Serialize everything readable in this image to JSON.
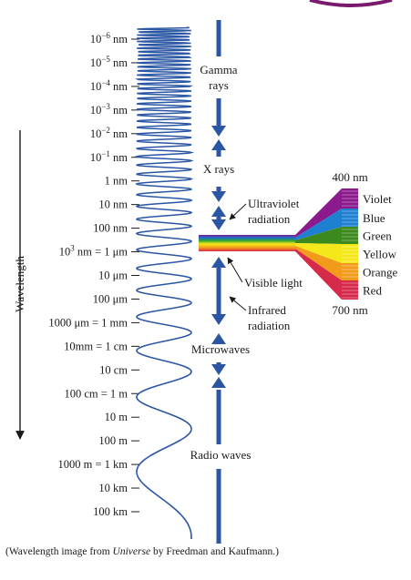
{
  "wavelength_ticks": [
    {
      "base": "10",
      "sup": "−6",
      "unit": " nm"
    },
    {
      "base": "10",
      "sup": "−5",
      "unit": " nm"
    },
    {
      "base": "10",
      "sup": "−4",
      "unit": " nm"
    },
    {
      "base": "10",
      "sup": "−3",
      "unit": " nm"
    },
    {
      "base": "10",
      "sup": "−2",
      "unit": " nm"
    },
    {
      "base": "10",
      "sup": "−1",
      "unit": " nm"
    },
    {
      "base": "1 nm",
      "sup": "",
      "unit": ""
    },
    {
      "base": "10 nm",
      "sup": "",
      "unit": ""
    },
    {
      "base": "100 nm",
      "sup": "",
      "unit": ""
    },
    {
      "base": "10",
      "sup": "3",
      "unit": " nm = 1 μm"
    },
    {
      "base": "10 μm",
      "sup": "",
      "unit": ""
    },
    {
      "base": "100 μm",
      "sup": "",
      "unit": ""
    },
    {
      "base": "1000 μm = 1 mm",
      "sup": "",
      "unit": ""
    },
    {
      "base": "10mm = 1 cm",
      "sup": "",
      "unit": ""
    },
    {
      "base": "10 cm",
      "sup": "",
      "unit": ""
    },
    {
      "base": "100 cm = 1 m",
      "sup": "",
      "unit": ""
    },
    {
      "base": "10 m",
      "sup": "",
      "unit": ""
    },
    {
      "base": "100 m",
      "sup": "",
      "unit": ""
    },
    {
      "base": "1000 m = 1 km",
      "sup": "",
      "unit": ""
    },
    {
      "base": "10 km",
      "sup": "",
      "unit": ""
    },
    {
      "base": "100 km",
      "sup": "",
      "unit": ""
    }
  ],
  "axis_label": "Wavelength",
  "bands": {
    "gamma": [
      "Gamma",
      "rays"
    ],
    "xray": "X rays",
    "uv": [
      "Ultraviolet",
      "radiation"
    ],
    "visible": "Visible light",
    "ir": [
      "Infrared",
      "radiation"
    ],
    "micro": "Microwaves",
    "radio": "Radio waves"
  },
  "spectrum": {
    "top_label": "400 nm",
    "bottom_label": "700 nm",
    "colors": [
      {
        "name": "Violet",
        "hex": "#8b1a8e"
      },
      {
        "name": "Blue",
        "hex": "#1f7fd0"
      },
      {
        "name": "Green",
        "hex": "#3c8a1e"
      },
      {
        "name": "Yellow",
        "hex": "#f5e81a"
      },
      {
        "name": "Orange",
        "hex": "#f29a1c"
      },
      {
        "name": "Red",
        "hex": "#d62a4a"
      }
    ]
  },
  "caption": {
    "prefix": "(Wavelength image from ",
    "book": "Universe",
    "suffix": " by Freedman and Kaufmann.)"
  },
  "colors": {
    "arrow": "#2a56a3",
    "wave": "#2a56a3"
  }
}
